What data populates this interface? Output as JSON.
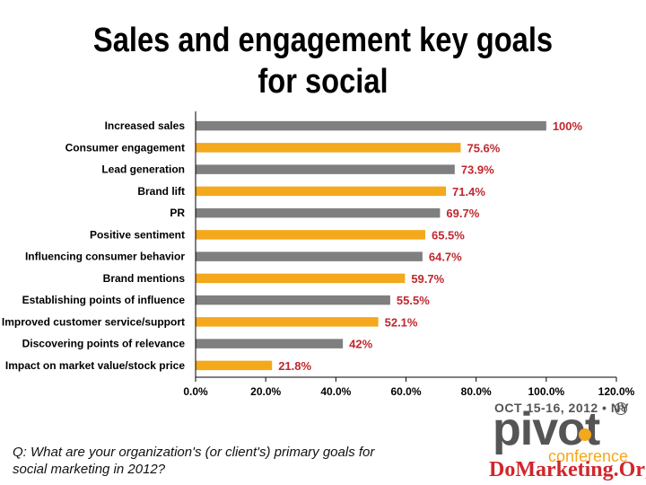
{
  "title": {
    "line1": "Sales and engagement key goals",
    "line2": "for social"
  },
  "question": {
    "text": "Q: What are your organization's (or client's) primary goals for social marketing in 2012?"
  },
  "logo": {
    "date": "OCT 15-16, 2012 • NY",
    "registered": "R",
    "word": "pivot",
    "sub": "conference",
    "site": "DoMarketing.Org"
  },
  "colors": {
    "gray_bar": "#7f7f7f",
    "orange_bar": "#f4a81c",
    "value_label": "#c0272d",
    "axis": "#000000"
  },
  "chart_data": {
    "type": "bar",
    "orientation": "horizontal",
    "title": "Sales and engagement key goals for social",
    "categories": [
      "Increased sales",
      "Consumer engagement",
      "Lead generation",
      "Brand lift",
      "PR",
      "Positive sentiment",
      "Influencing consumer behavior",
      "Brand mentions",
      "Establishing points of influence",
      "Improved customer service/support",
      "Discovering points of relevance",
      "Impact on market value/stock price"
    ],
    "values": [
      100,
      75.6,
      73.9,
      71.4,
      69.7,
      65.5,
      64.7,
      59.7,
      55.5,
      52.1,
      42,
      21.8
    ],
    "value_labels": [
      "100%",
      "75.6%",
      "73.9%",
      "71.4%",
      "69.7%",
      "65.5%",
      "64.7%",
      "59.7%",
      "55.5%",
      "52.1%",
      "42%",
      "21.8%"
    ],
    "bar_colors": [
      "gray",
      "orange",
      "gray",
      "orange",
      "gray",
      "orange",
      "gray",
      "orange",
      "gray",
      "orange",
      "gray",
      "orange"
    ],
    "xlim": [
      0,
      120
    ],
    "xticks": [
      0,
      20,
      40,
      60,
      80,
      100,
      120
    ],
    "xtick_labels": [
      "0.0%",
      "20.0%",
      "40.0%",
      "60.0%",
      "80.0%",
      "100.0%",
      "120.0%"
    ],
    "xlabel": "",
    "ylabel": "",
    "grid": false,
    "legend": "none"
  }
}
